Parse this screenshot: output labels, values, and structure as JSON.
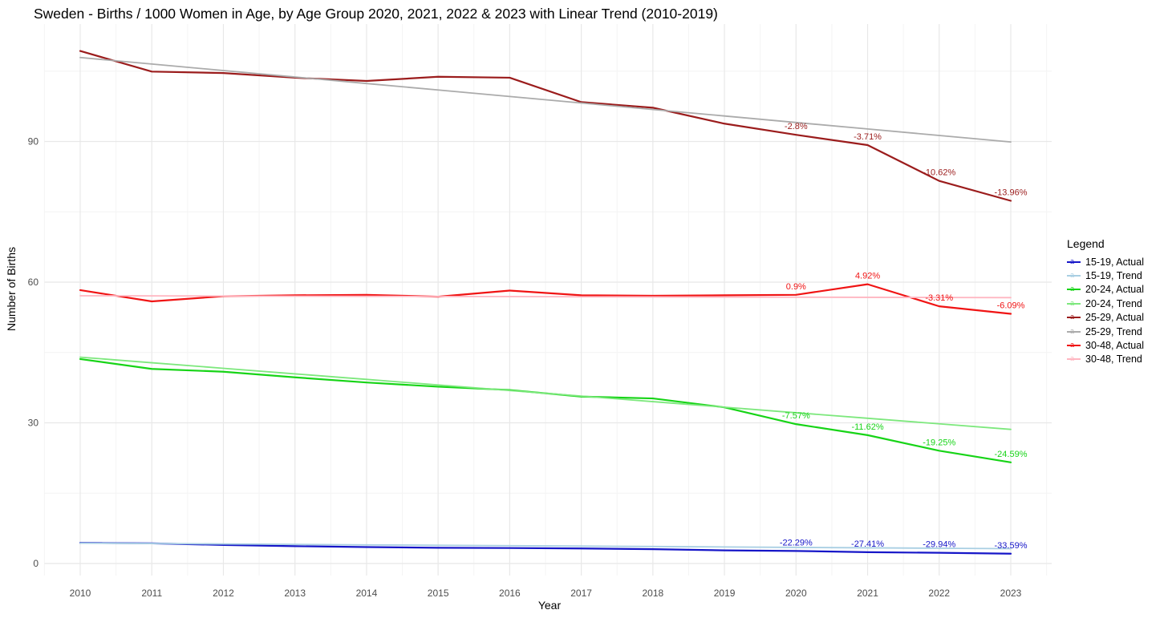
{
  "chart_data": {
    "type": "line",
    "title": "Sweden - Births / 1000 Women in Age, by Age Group 2020, 2021, 2022 & 2023 with Linear Trend (2010-2019)",
    "xlabel": "Year",
    "ylabel": "Number of Births",
    "x": [
      2010,
      2011,
      2012,
      2013,
      2014,
      2015,
      2016,
      2017,
      2018,
      2019,
      2020,
      2021,
      2022,
      2023
    ],
    "yticks": [
      0,
      30,
      60,
      90
    ],
    "yticks_minor": [
      15,
      45,
      75,
      105
    ],
    "ylim": [
      -2.5,
      115
    ],
    "grid": "major-and-minor, light gray on white",
    "legend": {
      "title": "Legend",
      "position": "right"
    },
    "series": [
      {
        "name": "15-19, Actual",
        "color": "#1616c8",
        "width": 2.2,
        "values": [
          4.4,
          4.3,
          3.95,
          3.7,
          3.5,
          3.35,
          3.3,
          3.2,
          3.05,
          2.8,
          2.67,
          2.42,
          2.28,
          2.09
        ]
      },
      {
        "name": "15-19, Trend",
        "color": "#a9cfe3",
        "width": 1.8,
        "values": [
          4.35,
          4.26,
          4.17,
          4.08,
          3.98,
          3.89,
          3.8,
          3.71,
          3.62,
          3.53,
          3.43,
          3.34,
          3.25,
          3.16
        ]
      },
      {
        "name": "20-24, Actual",
        "color": "#17d417",
        "width": 2.2,
        "values": [
          43.6,
          41.5,
          40.9,
          39.7,
          38.6,
          37.7,
          37.0,
          35.6,
          35.2,
          33.3,
          29.72,
          27.37,
          24.05,
          21.57
        ]
      },
      {
        "name": "20-24, Trend",
        "color": "#7de87d",
        "width": 1.8,
        "values": [
          44.0,
          42.81,
          41.63,
          40.44,
          39.26,
          38.08,
          36.89,
          35.71,
          34.52,
          33.34,
          32.15,
          30.97,
          29.78,
          28.6
        ]
      },
      {
        "name": "25-29, Actual",
        "color": "#9b1c1c",
        "width": 2.2,
        "values": [
          109.3,
          104.9,
          104.6,
          103.6,
          102.9,
          103.8,
          103.6,
          98.4,
          97.2,
          93.8,
          91.42,
          89.23,
          81.59,
          77.35
        ]
      },
      {
        "name": "25-29, Trend",
        "color": "#ababab",
        "width": 1.8,
        "values": [
          107.9,
          106.52,
          105.13,
          103.75,
          102.36,
          100.98,
          99.59,
          98.21,
          96.82,
          95.44,
          94.05,
          92.67,
          91.28,
          89.9
        ]
      },
      {
        "name": "30-48, Actual",
        "color": "#f01414",
        "width": 2.2,
        "values": [
          58.3,
          55.9,
          57.0,
          57.2,
          57.3,
          56.9,
          58.2,
          57.2,
          57.1,
          57.2,
          57.3,
          59.55,
          54.85,
          53.25
        ]
      },
      {
        "name": "30-48, Trend",
        "color": "#ffb6c1",
        "width": 1.8,
        "values": [
          57.1,
          57.07,
          57.04,
          57.01,
          56.98,
          56.95,
          56.92,
          56.88,
          56.85,
          56.82,
          56.79,
          56.76,
          56.73,
          56.7
        ]
      }
    ],
    "annotations": [
      {
        "series": "25-29, Actual",
        "year": 2020,
        "label": "-2.8%"
      },
      {
        "series": "25-29, Actual",
        "year": 2021,
        "label": "-3.71%"
      },
      {
        "series": "25-29, Actual",
        "year": 2022,
        "label": "-10.62%"
      },
      {
        "series": "25-29, Actual",
        "year": 2023,
        "label": "-13.96%"
      },
      {
        "series": "30-48, Actual",
        "year": 2020,
        "label": "0.9%"
      },
      {
        "series": "30-48, Actual",
        "year": 2021,
        "label": "4.92%"
      },
      {
        "series": "30-48, Actual",
        "year": 2022,
        "label": "-3.31%"
      },
      {
        "series": "30-48, Actual",
        "year": 2023,
        "label": "-6.09%"
      },
      {
        "series": "20-24, Actual",
        "year": 2020,
        "label": "-7.57%"
      },
      {
        "series": "20-24, Actual",
        "year": 2021,
        "label": "-11.62%"
      },
      {
        "series": "20-24, Actual",
        "year": 2022,
        "label": "-19.25%"
      },
      {
        "series": "20-24, Actual",
        "year": 2023,
        "label": "-24.59%"
      },
      {
        "series": "15-19, Actual",
        "year": 2020,
        "label": "-22.29%"
      },
      {
        "series": "15-19, Actual",
        "year": 2021,
        "label": "-27.41%"
      },
      {
        "series": "15-19, Actual",
        "year": 2022,
        "label": "-29.94%"
      },
      {
        "series": "15-19, Actual",
        "year": 2023,
        "label": "-33.59%"
      }
    ],
    "colors": {
      "grid_major": "#e8e8e8",
      "grid_minor": "#f4f4f4",
      "tick_label": "#4d4d4d"
    }
  }
}
